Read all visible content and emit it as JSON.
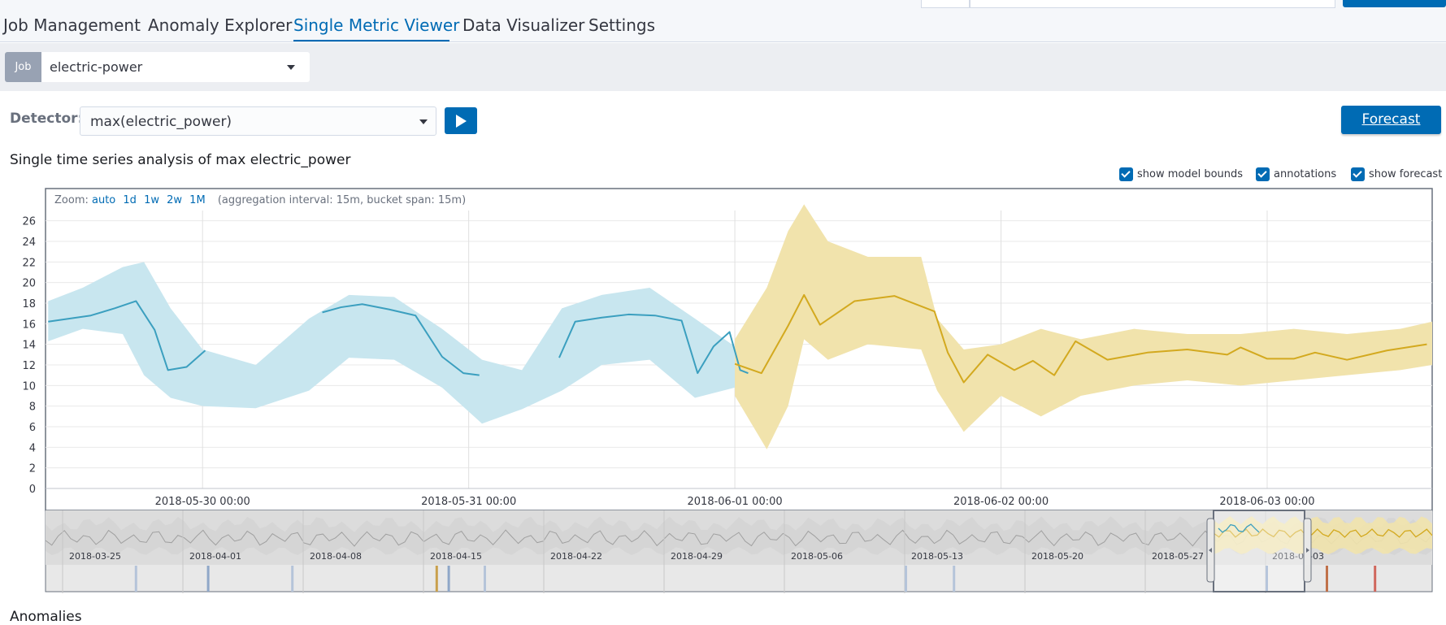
{
  "nav": {
    "tabs": [
      {
        "label": "Job Management"
      },
      {
        "label": "Anomaly Explorer"
      },
      {
        "label": "Single Metric Viewer"
      },
      {
        "label": "Data Visualizer"
      },
      {
        "label": "Settings"
      }
    ],
    "active_tab": "Single Metric Viewer"
  },
  "job": {
    "prepend": "Job",
    "value": "electric-power"
  },
  "detector": {
    "label": "Detector:",
    "value": "max(electric_power)",
    "forecast_button": "Forecast"
  },
  "subtitle": "Single time series analysis of max electric_power",
  "toggles": {
    "model_bounds": "show model bounds",
    "annotations": "annotations",
    "forecast": "show forecast"
  },
  "zoom": {
    "label": "Zoom:",
    "options": [
      "auto",
      "1d",
      "1w",
      "2w",
      "1M"
    ],
    "interval_text": "(aggregation interval: 15m, bucket span: 15m)"
  },
  "colors": {
    "actual_line": "#3b9fbf",
    "model_bounds": "#c8e6ef",
    "forecast_line": "#d3a91f",
    "forecast_bounds": "#f1e3ac",
    "context_band": "#d4d4d4",
    "context_line": "#a0a0a0",
    "accent": "#006bb4"
  },
  "chart_data": [
    {
      "type": "line",
      "title": "",
      "ylim": [
        0,
        27
      ],
      "y_ticks": [
        0,
        2,
        4,
        6,
        8,
        10,
        12,
        14,
        16,
        18,
        20,
        22,
        24,
        26
      ],
      "x_tick_labels": [
        "2018-05-30 00:00",
        "2018-05-31 00:00",
        "2018-06-01 00:00",
        "2018-06-02 00:00",
        "2018-06-03 00:00"
      ],
      "x_range_days": [
        -0.59,
        4.62
      ],
      "grid": true,
      "series": [
        {
          "x": [
            -0.58,
            -0.5,
            -0.42,
            -0.33,
            -0.25,
            -0.18,
            -0.13,
            -0.06,
            0.01
          ],
          "values": [
            16.2,
            16.5,
            16.8,
            17.5,
            18.2,
            15.4,
            11.5,
            11.8,
            13.4
          ]
        },
        {
          "x": [
            0.45,
            0.52,
            0.6,
            0.7,
            0.8,
            0.9,
            0.98,
            1.04
          ],
          "values": [
            17.1,
            17.6,
            17.9,
            17.4,
            16.8,
            12.8,
            11.2,
            11.0
          ]
        },
        {
          "x": [
            1.34,
            1.4,
            1.5,
            1.6,
            1.7,
            1.8,
            1.86,
            1.92,
            1.98,
            2.02,
            2.05
          ],
          "values": [
            12.7,
            16.2,
            16.6,
            16.9,
            16.8,
            16.3,
            11.2,
            13.8,
            15.2,
            11.5,
            11.2
          ]
        },
        {
          "x": [
            2.0,
            2.1,
            2.2,
            2.26,
            2.32,
            2.45,
            2.6,
            2.75,
            2.8,
            2.86,
            2.95,
            3.05,
            3.12,
            3.2,
            3.28,
            3.4,
            3.55,
            3.7,
            3.85,
            3.9,
            4.0,
            4.1,
            4.18,
            4.3,
            4.45,
            4.6
          ],
          "values": [
            12.1,
            11.2,
            15.8,
            18.8,
            15.9,
            18.2,
            18.7,
            17.2,
            13.2,
            10.3,
            13.0,
            11.5,
            12.4,
            11.0,
            14.3,
            12.5,
            13.2,
            13.5,
            13.0,
            13.7,
            12.6,
            12.6,
            13.2,
            12.5,
            13.4,
            14.0
          ]
        }
      ],
      "model_bounds": {
        "x": [
          -0.58,
          -0.45,
          -0.3,
          -0.22,
          -0.12,
          0.0,
          0.2,
          0.4,
          0.55,
          0.72,
          0.9,
          1.05,
          1.2,
          1.35,
          1.5,
          1.68,
          1.85,
          2.0
        ],
        "upper": [
          18.2,
          19.5,
          21.5,
          22.0,
          17.5,
          13.5,
          12.0,
          16.5,
          18.8,
          18.6,
          15.5,
          12.5,
          11.5,
          17.5,
          18.8,
          19.5,
          16.5,
          13.8
        ],
        "lower": [
          14.3,
          15.5,
          15.0,
          11.0,
          8.8,
          8.0,
          7.8,
          9.5,
          12.7,
          12.5,
          9.8,
          6.3,
          7.7,
          9.5,
          12.0,
          12.5,
          8.8,
          9.8
        ]
      },
      "forecast_bounds": {
        "x": [
          2.0,
          2.12,
          2.2,
          2.26,
          2.35,
          2.5,
          2.7,
          2.76,
          2.86,
          3.0,
          3.15,
          3.3,
          3.5,
          3.7,
          3.9,
          4.1,
          4.3,
          4.5,
          4.62
        ],
        "upper": [
          14.5,
          19.5,
          25.0,
          27.6,
          24.0,
          22.5,
          22.5,
          16.5,
          13.5,
          14.0,
          15.5,
          14.5,
          15.5,
          15.0,
          15.0,
          15.5,
          15.0,
          15.5,
          16.2
        ],
        "lower": [
          9.0,
          3.8,
          8.0,
          14.5,
          12.5,
          14.0,
          13.5,
          9.5,
          5.5,
          9.0,
          7.0,
          9.0,
          10.0,
          10.5,
          10.0,
          10.5,
          11.0,
          11.5,
          12.0
        ]
      }
    },
    {
      "type": "area",
      "title": "",
      "x_tick_labels": [
        "2018-03-25",
        "2018-04-01",
        "2018-04-08",
        "2018-04-15",
        "2018-04-22",
        "2018-04-29",
        "2018-05-06",
        "2018-05-13",
        "2018-05-20",
        "2018-05-27",
        "2018-06-03"
      ],
      "selected_range": [
        "2018-05-30",
        "2018-06-03"
      ],
      "annotation_markers": [
        {
          "week_offset": 0.6,
          "color": "#b5c4d9"
        },
        {
          "week_offset": 1.2,
          "color": "#8fa7c8"
        },
        {
          "week_offset": 1.9,
          "color": "#b5c4d9"
        },
        {
          "week_offset": 3.1,
          "color": "#c9a04c"
        },
        {
          "week_offset": 3.2,
          "color": "#8fa7c8"
        },
        {
          "week_offset": 3.5,
          "color": "#b5c4d9"
        },
        {
          "week_offset": 7.0,
          "color": "#b5c4d9"
        },
        {
          "week_offset": 7.4,
          "color": "#b5c4d9"
        },
        {
          "week_offset": 10.0,
          "color": "#8fa7c8"
        },
        {
          "week_offset": 10.5,
          "color": "#c0714a"
        },
        {
          "week_offset": 10.9,
          "color": "#d0675c"
        },
        {
          "week_offset": 13.8,
          "color": "#8fa7c8"
        },
        {
          "week_offset": 14.7,
          "color": "#8fa7c8"
        },
        {
          "week_offset": 14.75,
          "color": "#c9a04c"
        }
      ]
    }
  ],
  "anomalies_heading": "Anomalies"
}
